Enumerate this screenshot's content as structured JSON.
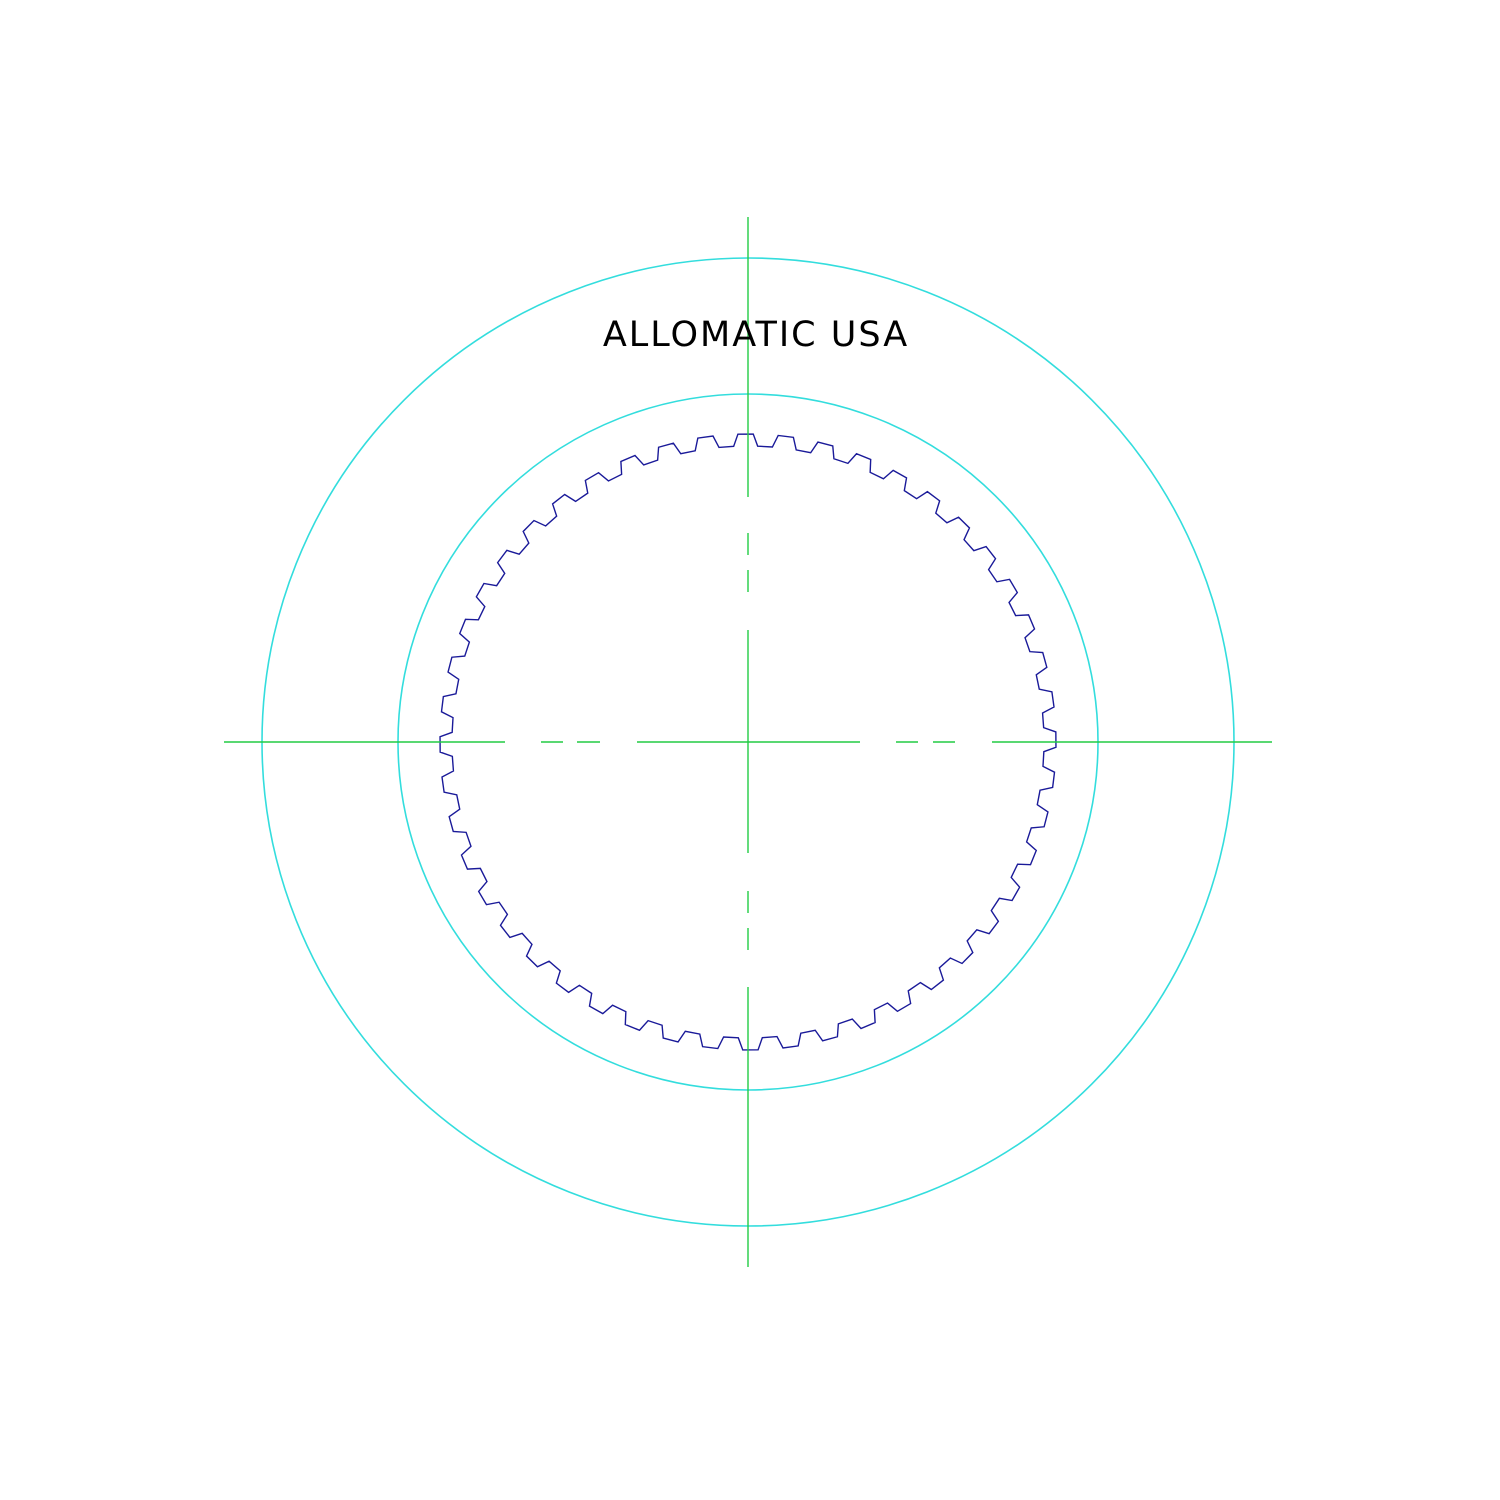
{
  "label": "ALLOMATIC USA",
  "spline": {
    "teeth": 48
  },
  "colors": {
    "background": "#ffffff",
    "outer_ring": "#33dddd",
    "inner_ring": "#33dddd",
    "spline": "#1a1a99",
    "centerline": "#22cc44",
    "label": "#000000"
  }
}
